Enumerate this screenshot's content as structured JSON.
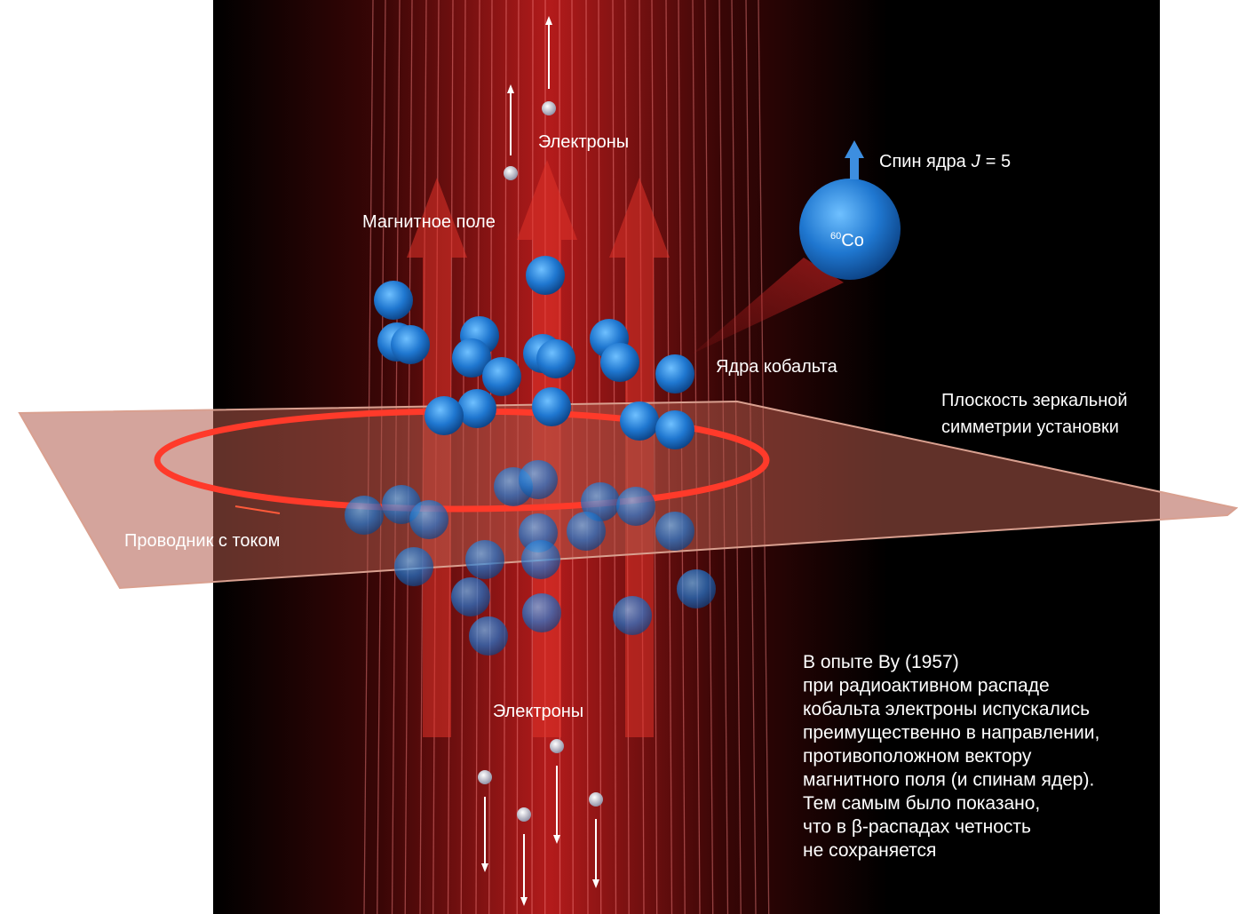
{
  "labels": {
    "electrons_top": "Электроны",
    "spin": {
      "text": "Спин ядра",
      "symbol": "J",
      "value": "= 5"
    },
    "magnetic_field": "Магнитное поле",
    "isotope": {
      "mass": "60",
      "element": "Co"
    },
    "cobalt_nuclei": "Ядра кобальта",
    "mirror_plane": [
      "Плоскость зеркальной",
      "симметрии установки"
    ],
    "conductor": "Проводник с током",
    "electrons_bottom": "Электроны"
  },
  "caption": [
    "В опыте Ву (1957)",
    "при радиоактивном распаде",
    "кобальта электроны испускались",
    "преимущественно в направлении,",
    "противоположном вектору",
    "магнитного поля (и спинам ядер).",
    "Тем самым было показано,",
    "что в β-распадах четность",
    "не сохраняется"
  ]
}
